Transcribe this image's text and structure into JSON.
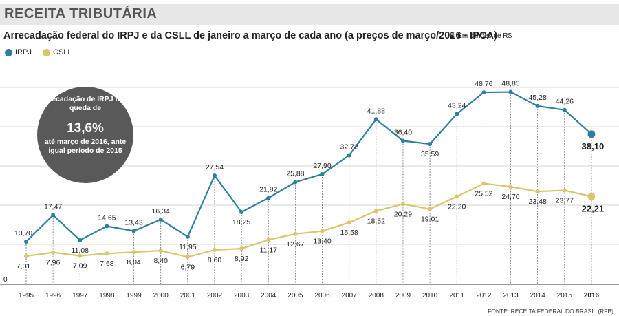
{
  "header": {
    "title": "RECEITA TRIBUTÁRIA"
  },
  "subtitle": "Arrecadação federal do IRPJ e da CSLL de janeiro a março de cada ano (a preços de março/2016 - IPCA)",
  "unit_note": "Em bilhões de R$",
  "legend": {
    "irpj": "IRPJ",
    "csll": "CSLL"
  },
  "callout": {
    "line1": "Arrecadação de IRPJ teve queda de",
    "highlight": "13,6%",
    "line2": "até março de 2016, ante igual período de 2015"
  },
  "source": "FONTE: RECEITA FEDERAL DO BRASIL (RFB)",
  "colors": {
    "irpj": "#2d7f9e",
    "csll": "#d9c56a",
    "grid": "#c8c8c8",
    "callout": "#595959"
  },
  "chart_data": {
    "type": "line",
    "categories": [
      "1995",
      "1996",
      "1997",
      "1998",
      "1999",
      "2000",
      "2001",
      "2002",
      "2003",
      "2004",
      "2005",
      "2006",
      "2007",
      "2008",
      "2009",
      "2010",
      "2011",
      "2012",
      "2013",
      "2014",
      "2015",
      "2016"
    ],
    "series": [
      {
        "name": "IRPJ",
        "values": [
          10.7,
          17.47,
          11.08,
          14.65,
          13.43,
          16.34,
          11.95,
          27.54,
          18.25,
          21.82,
          25.88,
          27.9,
          32.72,
          41.88,
          36.4,
          35.59,
          43.24,
          48.76,
          48.85,
          45.28,
          44.26,
          38.1
        ],
        "labels": [
          "10,70",
          "17,47",
          "11,08",
          "14,65",
          "13,43",
          "16,34",
          "11,95",
          "27,54",
          "18,25",
          "21,82",
          "25,88",
          "27,90",
          "32,72",
          "41,88",
          "36,40",
          "35,59",
          "43,24",
          "48,76",
          "48,85",
          "45,28",
          "44,26",
          "38,10"
        ]
      },
      {
        "name": "CSLL",
        "values": [
          7.01,
          7.96,
          7.09,
          7.68,
          8.04,
          8.4,
          6.79,
          8.6,
          8.92,
          11.17,
          12.67,
          13.4,
          15.58,
          18.52,
          20.29,
          19.01,
          22.2,
          25.52,
          24.7,
          23.48,
          23.77,
          22.21
        ],
        "labels": [
          "7,01",
          "7,96",
          "7,09",
          "7,68",
          "8,04",
          "8,40",
          "6,79",
          "8,60",
          "8,92",
          "11,17",
          "12,67",
          "13,40",
          "15,58",
          "18,52",
          "20,29",
          "19,01",
          "22,20",
          "25,52",
          "24,70",
          "23,48",
          "23,77",
          "22,21"
        ]
      }
    ],
    "ylim": [
      0,
      60
    ],
    "y_ticks": [
      0
    ],
    "y_tick_labels": [
      "0"
    ],
    "grid": true
  }
}
